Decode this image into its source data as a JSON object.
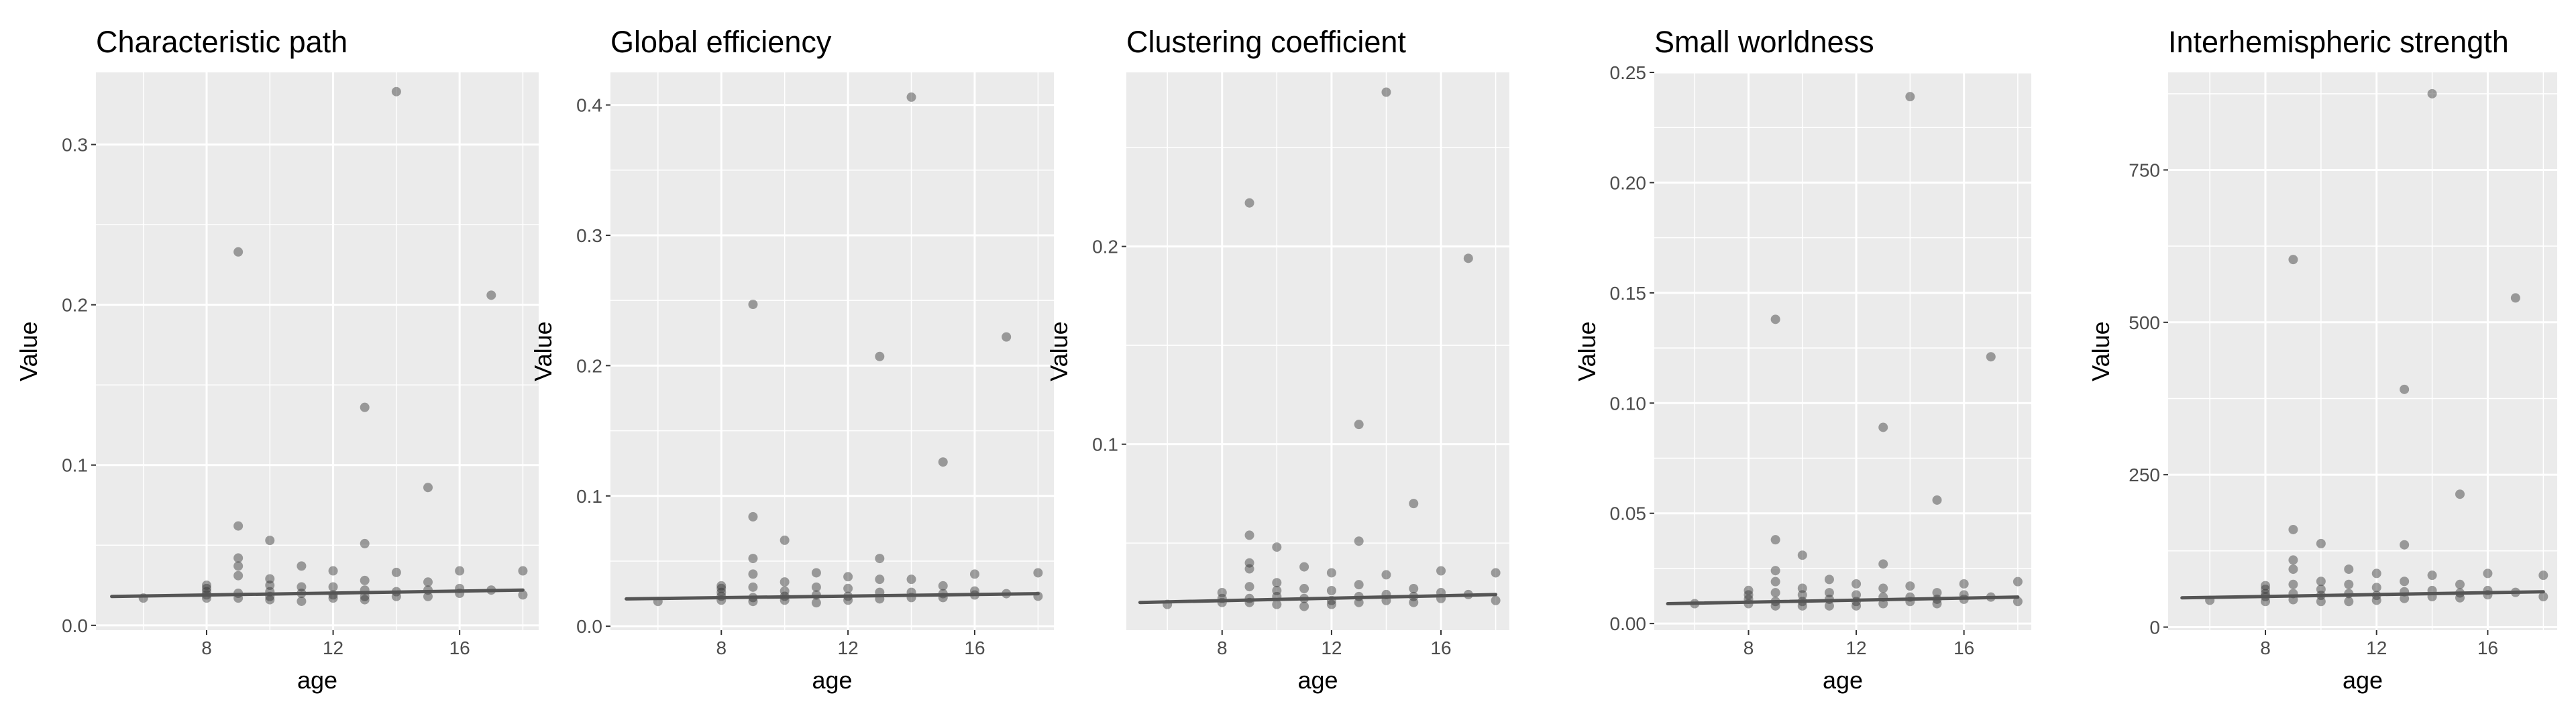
{
  "figure": {
    "panel_background": "#ebebeb",
    "grid_color": "#ffffff",
    "point_color": "#333333",
    "trend_color": "#555555"
  },
  "chart_data": [
    {
      "type": "scatter",
      "title": "Characteristic path",
      "xlabel": "age",
      "ylabel": "Value",
      "xlim": [
        4.5,
        18.5
      ],
      "ylim": [
        -0.003,
        0.345
      ],
      "xticks": [
        8,
        12,
        16
      ],
      "yticks": [
        0.0,
        0.1,
        0.2,
        0.3
      ],
      "ytick_labels": [
        "0.0",
        "0.1",
        "0.2",
        "0.3"
      ],
      "trend": [
        [
          5,
          0.018
        ],
        [
          18,
          0.022
        ]
      ],
      "points": [
        [
          6,
          0.017
        ],
        [
          8,
          0.017
        ],
        [
          8,
          0.019
        ],
        [
          8,
          0.021
        ],
        [
          8,
          0.023
        ],
        [
          8,
          0.025
        ],
        [
          9,
          0.233
        ],
        [
          9,
          0.062
        ],
        [
          9,
          0.042
        ],
        [
          9,
          0.037
        ],
        [
          9,
          0.031
        ],
        [
          9,
          0.02
        ],
        [
          9,
          0.017
        ],
        [
          10,
          0.053
        ],
        [
          10,
          0.029
        ],
        [
          10,
          0.025
        ],
        [
          10,
          0.021
        ],
        [
          10,
          0.018
        ],
        [
          10,
          0.016
        ],
        [
          11,
          0.037
        ],
        [
          11,
          0.024
        ],
        [
          11,
          0.02
        ],
        [
          11,
          0.015
        ],
        [
          12,
          0.034
        ],
        [
          12,
          0.024
        ],
        [
          12,
          0.019
        ],
        [
          12,
          0.017
        ],
        [
          13,
          0.136
        ],
        [
          13,
          0.051
        ],
        [
          13,
          0.028
        ],
        [
          13,
          0.022
        ],
        [
          13,
          0.018
        ],
        [
          13,
          0.016
        ],
        [
          14,
          0.333
        ],
        [
          14,
          0.033
        ],
        [
          14,
          0.021
        ],
        [
          14,
          0.018
        ],
        [
          15,
          0.086
        ],
        [
          15,
          0.027
        ],
        [
          15,
          0.022
        ],
        [
          15,
          0.018
        ],
        [
          16,
          0.034
        ],
        [
          16,
          0.023
        ],
        [
          16,
          0.02
        ],
        [
          17,
          0.206
        ],
        [
          17,
          0.022
        ],
        [
          18,
          0.034
        ],
        [
          18,
          0.019
        ]
      ]
    },
    {
      "type": "scatter",
      "title": "Global efficiency",
      "xlabel": "age",
      "ylabel": "Value",
      "xlim": [
        4.5,
        18.5
      ],
      "ylim": [
        -0.003,
        0.425
      ],
      "xticks": [
        8,
        12,
        16
      ],
      "yticks": [
        0.0,
        0.1,
        0.2,
        0.3,
        0.4
      ],
      "ytick_labels": [
        "0.0",
        "0.1",
        "0.2",
        "0.3",
        "0.4"
      ],
      "trend": [
        [
          5,
          0.021
        ],
        [
          18,
          0.025
        ]
      ],
      "points": [
        [
          6,
          0.019
        ],
        [
          8,
          0.02
        ],
        [
          8,
          0.023
        ],
        [
          8,
          0.026
        ],
        [
          8,
          0.029
        ],
        [
          8,
          0.031
        ],
        [
          9,
          0.247
        ],
        [
          9,
          0.084
        ],
        [
          9,
          0.052
        ],
        [
          9,
          0.04
        ],
        [
          9,
          0.03
        ],
        [
          9,
          0.022
        ],
        [
          9,
          0.019
        ],
        [
          10,
          0.066
        ],
        [
          10,
          0.034
        ],
        [
          10,
          0.027
        ],
        [
          10,
          0.023
        ],
        [
          10,
          0.02
        ],
        [
          11,
          0.041
        ],
        [
          11,
          0.03
        ],
        [
          11,
          0.024
        ],
        [
          11,
          0.018
        ],
        [
          12,
          0.038
        ],
        [
          12,
          0.029
        ],
        [
          12,
          0.023
        ],
        [
          12,
          0.02
        ],
        [
          13,
          0.207
        ],
        [
          13,
          0.052
        ],
        [
          13,
          0.036
        ],
        [
          13,
          0.026
        ],
        [
          13,
          0.021
        ],
        [
          14,
          0.406
        ],
        [
          14,
          0.036
        ],
        [
          14,
          0.026
        ],
        [
          14,
          0.022
        ],
        [
          15,
          0.126
        ],
        [
          15,
          0.031
        ],
        [
          15,
          0.025
        ],
        [
          15,
          0.022
        ],
        [
          16,
          0.04
        ],
        [
          16,
          0.027
        ],
        [
          16,
          0.024
        ],
        [
          17,
          0.222
        ],
        [
          17,
          0.025
        ],
        [
          18,
          0.041
        ],
        [
          18,
          0.023
        ]
      ]
    },
    {
      "type": "scatter",
      "title": "Clustering coefficient",
      "xlabel": "age",
      "ylabel": "Value",
      "xlim": [
        4.5,
        18.5
      ],
      "ylim": [
        0.006,
        0.288
      ],
      "xticks": [
        8,
        12,
        16
      ],
      "yticks": [
        0.1,
        0.2
      ],
      "ytick_labels": [
        "0.1",
        "0.2"
      ],
      "trend": [
        [
          5,
          0.02
        ],
        [
          18,
          0.024
        ]
      ],
      "points": [
        [
          6,
          0.019
        ],
        [
          8,
          0.02
        ],
        [
          8,
          0.022
        ],
        [
          8,
          0.025
        ],
        [
          9,
          0.222
        ],
        [
          9,
          0.054
        ],
        [
          9,
          0.04
        ],
        [
          9,
          0.037
        ],
        [
          9,
          0.028
        ],
        [
          9,
          0.022
        ],
        [
          9,
          0.02
        ],
        [
          10,
          0.048
        ],
        [
          10,
          0.03
        ],
        [
          10,
          0.026
        ],
        [
          10,
          0.023
        ],
        [
          10,
          0.019
        ],
        [
          11,
          0.038
        ],
        [
          11,
          0.027
        ],
        [
          11,
          0.022
        ],
        [
          11,
          0.018
        ],
        [
          12,
          0.035
        ],
        [
          12,
          0.026
        ],
        [
          12,
          0.021
        ],
        [
          12,
          0.019
        ],
        [
          13,
          0.11
        ],
        [
          13,
          0.051
        ],
        [
          13,
          0.029
        ],
        [
          13,
          0.023
        ],
        [
          13,
          0.02
        ],
        [
          14,
          0.278
        ],
        [
          14,
          0.034
        ],
        [
          14,
          0.024
        ],
        [
          14,
          0.021
        ],
        [
          15,
          0.07
        ],
        [
          15,
          0.027
        ],
        [
          15,
          0.023
        ],
        [
          15,
          0.02
        ],
        [
          16,
          0.036
        ],
        [
          16,
          0.025
        ],
        [
          16,
          0.022
        ],
        [
          17,
          0.194
        ],
        [
          17,
          0.024
        ],
        [
          18,
          0.035
        ],
        [
          18,
          0.021
        ]
      ]
    },
    {
      "type": "scatter",
      "title": "Small worldness",
      "xlabel": "age",
      "ylabel": "Value",
      "xlim": [
        4.5,
        18.5
      ],
      "ylim": [
        -0.003,
        0.25
      ],
      "xticks": [
        8,
        12,
        16
      ],
      "yticks": [
        0.0,
        0.05,
        0.1,
        0.15,
        0.2,
        0.25
      ],
      "ytick_labels": [
        "0.00",
        "0.05",
        "0.10",
        "0.15",
        "0.20",
        "0.25"
      ],
      "trend": [
        [
          5,
          0.009
        ],
        [
          18,
          0.012
        ]
      ],
      "points": [
        [
          6,
          0.009
        ],
        [
          8,
          0.009
        ],
        [
          8,
          0.011
        ],
        [
          8,
          0.013
        ],
        [
          8,
          0.015
        ],
        [
          9,
          0.138
        ],
        [
          9,
          0.038
        ],
        [
          9,
          0.024
        ],
        [
          9,
          0.019
        ],
        [
          9,
          0.014
        ],
        [
          9,
          0.01
        ],
        [
          9,
          0.008
        ],
        [
          10,
          0.031
        ],
        [
          10,
          0.016
        ],
        [
          10,
          0.013
        ],
        [
          10,
          0.01
        ],
        [
          10,
          0.008
        ],
        [
          11,
          0.02
        ],
        [
          11,
          0.014
        ],
        [
          11,
          0.011
        ],
        [
          11,
          0.008
        ],
        [
          12,
          0.018
        ],
        [
          12,
          0.013
        ],
        [
          12,
          0.01
        ],
        [
          12,
          0.008
        ],
        [
          13,
          0.089
        ],
        [
          13,
          0.027
        ],
        [
          13,
          0.016
        ],
        [
          13,
          0.012
        ],
        [
          13,
          0.009
        ],
        [
          14,
          0.239
        ],
        [
          14,
          0.017
        ],
        [
          14,
          0.012
        ],
        [
          14,
          0.01
        ],
        [
          15,
          0.056
        ],
        [
          15,
          0.014
        ],
        [
          15,
          0.011
        ],
        [
          15,
          0.009
        ],
        [
          16,
          0.018
        ],
        [
          16,
          0.013
        ],
        [
          16,
          0.011
        ],
        [
          17,
          0.121
        ],
        [
          17,
          0.012
        ],
        [
          18,
          0.019
        ],
        [
          18,
          0.01
        ]
      ]
    },
    {
      "type": "scatter",
      "title": "Interhemispheric strength",
      "xlabel": "age",
      "ylabel": "Value",
      "xlim": [
        4.5,
        18.5
      ],
      "ylim": [
        -5,
        910
      ],
      "xticks": [
        8,
        12,
        16
      ],
      "yticks": [
        0,
        250,
        500,
        750
      ],
      "ytick_labels": [
        "0",
        "250",
        "500",
        "750"
      ],
      "trend": [
        [
          5,
          48
        ],
        [
          18,
          58
        ]
      ],
      "points": [
        [
          6,
          44
        ],
        [
          8,
          42
        ],
        [
          8,
          50
        ],
        [
          8,
          55
        ],
        [
          8,
          62
        ],
        [
          8,
          68
        ],
        [
          9,
          603
        ],
        [
          9,
          160
        ],
        [
          9,
          110
        ],
        [
          9,
          95
        ],
        [
          9,
          70
        ],
        [
          9,
          55
        ],
        [
          9,
          45
        ],
        [
          10,
          137
        ],
        [
          10,
          75
        ],
        [
          10,
          62
        ],
        [
          10,
          52
        ],
        [
          10,
          42
        ],
        [
          11,
          95
        ],
        [
          11,
          70
        ],
        [
          11,
          55
        ],
        [
          11,
          42
        ],
        [
          12,
          88
        ],
        [
          12,
          65
        ],
        [
          12,
          52
        ],
        [
          12,
          44
        ],
        [
          13,
          390
        ],
        [
          13,
          135
        ],
        [
          13,
          75
        ],
        [
          13,
          58
        ],
        [
          13,
          47
        ],
        [
          14,
          875
        ],
        [
          14,
          85
        ],
        [
          14,
          60
        ],
        [
          14,
          50
        ],
        [
          15,
          218
        ],
        [
          15,
          70
        ],
        [
          15,
          56
        ],
        [
          15,
          48
        ],
        [
          16,
          88
        ],
        [
          16,
          60
        ],
        [
          16,
          53
        ],
        [
          17,
          540
        ],
        [
          17,
          57
        ],
        [
          18,
          85
        ],
        [
          18,
          50
        ]
      ]
    }
  ]
}
